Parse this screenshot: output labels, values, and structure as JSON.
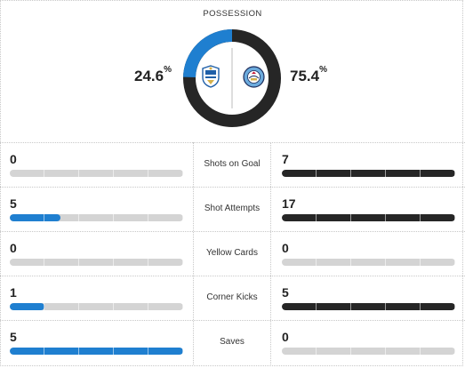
{
  "possession": {
    "title": "POSSESSION",
    "home_pct": "24.6",
    "away_pct": "75.4",
    "pct_sign": "%",
    "home_value": 24.6,
    "away_value": 75.4,
    "home_color": "#1f7fd0",
    "away_color": "#262626",
    "home_crest": "huddersfield-town-crest",
    "away_crest": "manchester-city-crest"
  },
  "stats": [
    {
      "label": "Shots on Goal",
      "home": "0",
      "away": "7",
      "home_fill": 0.0,
      "away_fill": 1.0
    },
    {
      "label": "Shot Attempts",
      "home": "5",
      "away": "17",
      "home_fill": 0.29,
      "away_fill": 1.0
    },
    {
      "label": "Yellow Cards",
      "home": "0",
      "away": "0",
      "home_fill": 0.0,
      "away_fill": 0.0
    },
    {
      "label": "Corner Kicks",
      "home": "1",
      "away": "5",
      "home_fill": 0.2,
      "away_fill": 1.0
    },
    {
      "label": "Saves",
      "home": "5",
      "away": "0",
      "home_fill": 1.0,
      "away_fill": 0.0
    }
  ]
}
